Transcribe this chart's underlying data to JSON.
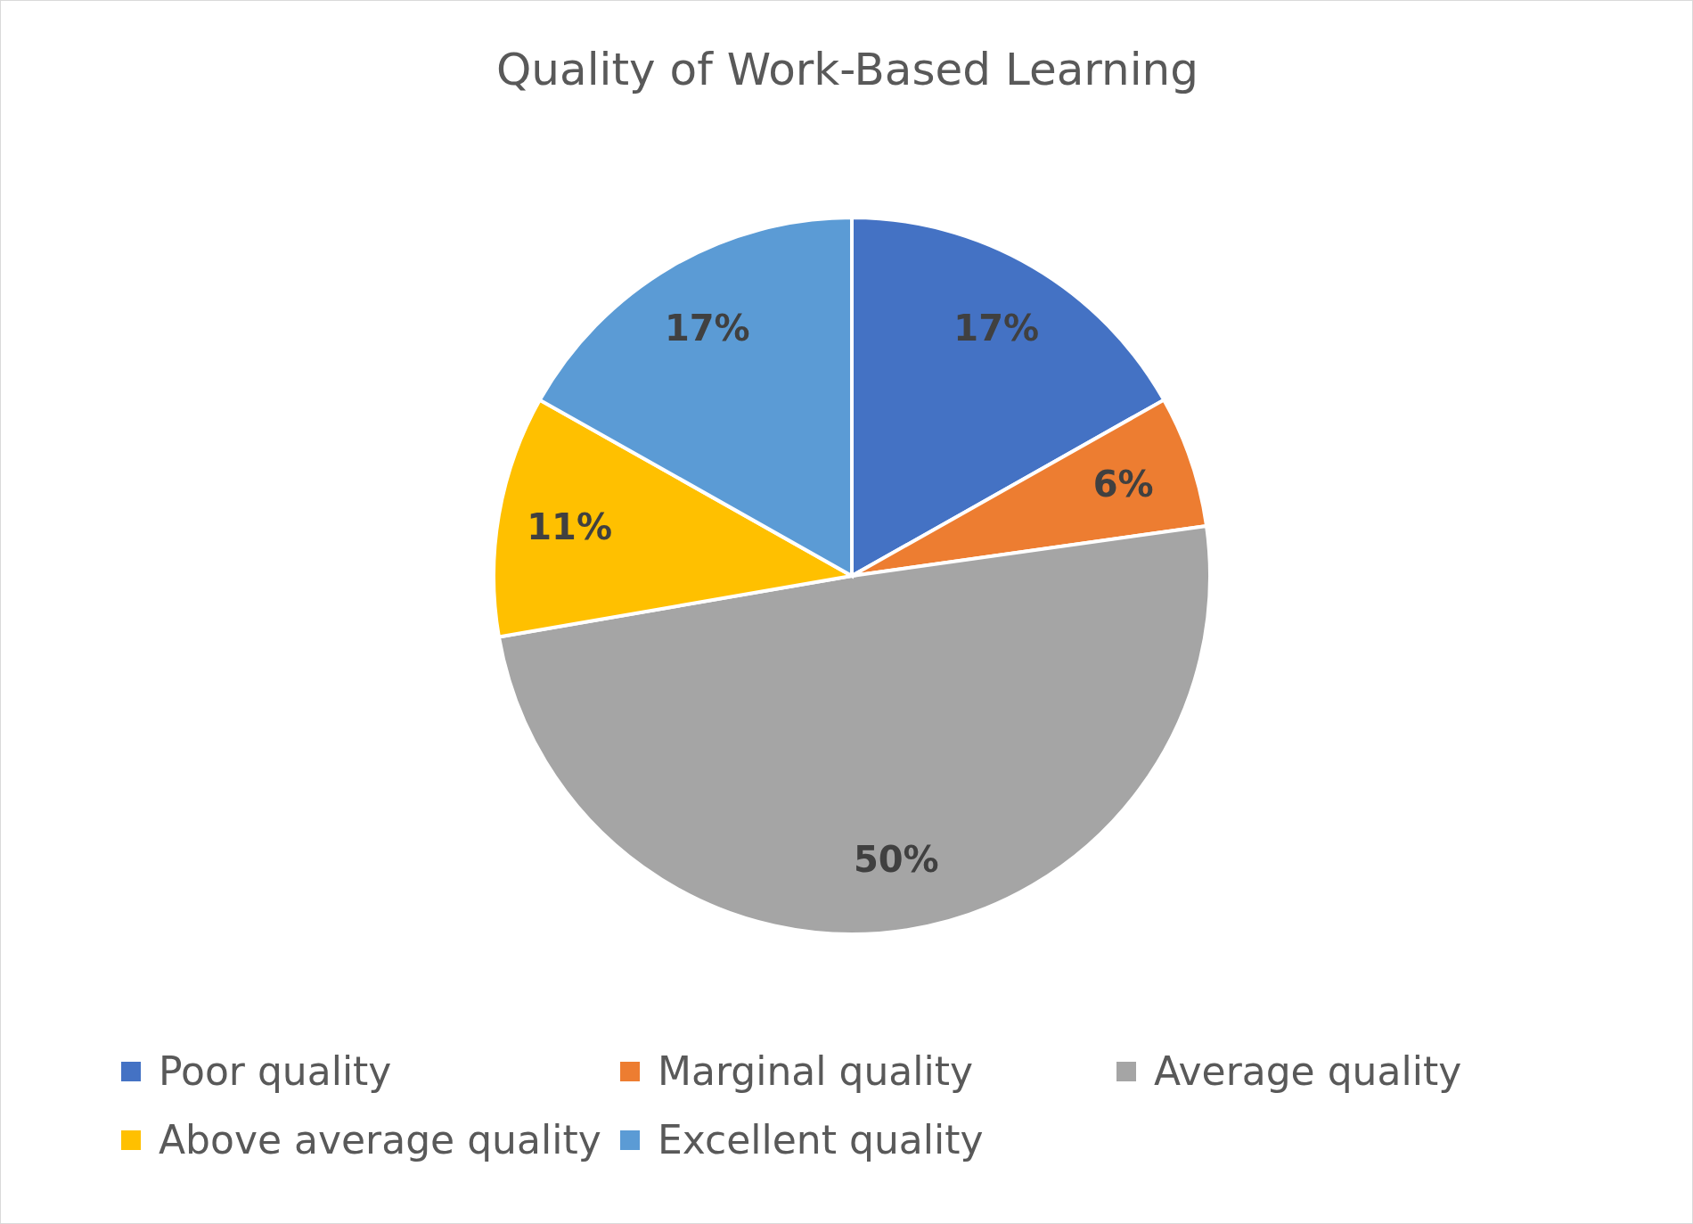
{
  "chart_data": {
    "type": "pie",
    "title": "Quality of Work-Based Learning",
    "categories": [
      "Poor quality",
      "Marginal quality",
      "Average quality",
      "Above average quality",
      "Excellent quality"
    ],
    "values": [
      17,
      6,
      50,
      11,
      17
    ],
    "value_labels": [
      "17%",
      "6%",
      "50%",
      "11%",
      "17%"
    ],
    "colors": [
      "#4472c4",
      "#ed7d31",
      "#a5a5a5",
      "#ffc000",
      "#5b9bd5"
    ],
    "legend": "bottom"
  }
}
